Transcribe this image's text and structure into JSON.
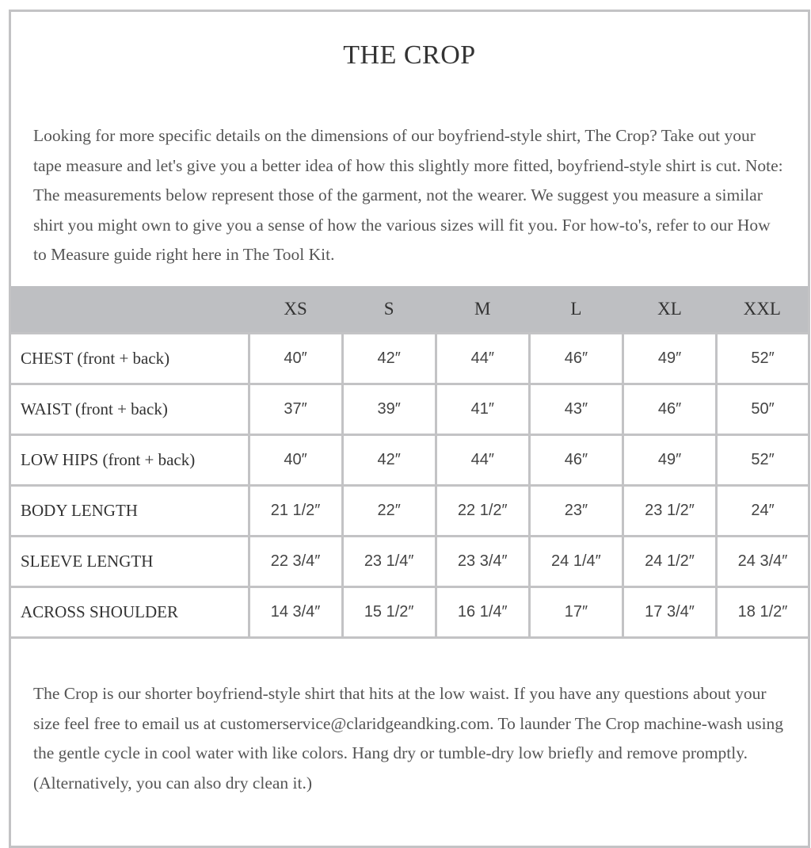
{
  "title": "THE CROP",
  "intro": "Looking for more specific details on the dimensions of our boyfriend-style shirt, The Crop? Take out your tape measure and let's give you a better idea of how this slightly more fitted, boyfriend-style shirt is cut. Note: The measurements below represent those of the garment, not the wearer. We suggest you measure a similar shirt you might own to give you a sense of how the various sizes will fit you. For how-to's, refer to our How to Measure guide right here in The Tool Kit.",
  "table": {
    "sizes": [
      "XS",
      "S",
      "M",
      "L",
      "XL",
      "XXL"
    ],
    "rows": [
      {
        "label": "CHEST (front + back)",
        "values": [
          "40″",
          "42″",
          "44″",
          "46″",
          "49″",
          "52″"
        ]
      },
      {
        "label": "WAIST (front + back)",
        "values": [
          "37″",
          "39″",
          "41″",
          "43″",
          "46″",
          "50″"
        ]
      },
      {
        "label": "LOW HIPS (front + back)",
        "values": [
          "40″",
          "42″",
          "44″",
          "46″",
          "49″",
          "52″"
        ]
      },
      {
        "label": "BODY LENGTH",
        "values": [
          "21 1/2″",
          "22″",
          "22 1/2″",
          "23″",
          "23 1/2″",
          "24″"
        ]
      },
      {
        "label": "SLEEVE LENGTH",
        "values": [
          "22 3/4″",
          "23 1/4″",
          "23 3/4″",
          "24 1/4″",
          "24 1/2″",
          "24 3/4″"
        ]
      },
      {
        "label": "ACROSS SHOULDER",
        "values": [
          "14 3/4″",
          "15 1/2″",
          "16 1/4″",
          "17″",
          "17 3/4″",
          "18 1/2″"
        ]
      }
    ]
  },
  "outro": "The Crop is our shorter boyfriend-style shirt that hits at the low waist. If you have any questions about your size feel free to email us at customerservice@claridgeandking.com. To launder The Crop machine-wash using the gentle cycle in cool water with like colors. Hang dry or tumble-dry low briefly and remove promptly. (Alternatively, you can also dry clean it.)",
  "colors": {
    "header_bg": "#bebfc2",
    "border": "#c3c3c5"
  }
}
